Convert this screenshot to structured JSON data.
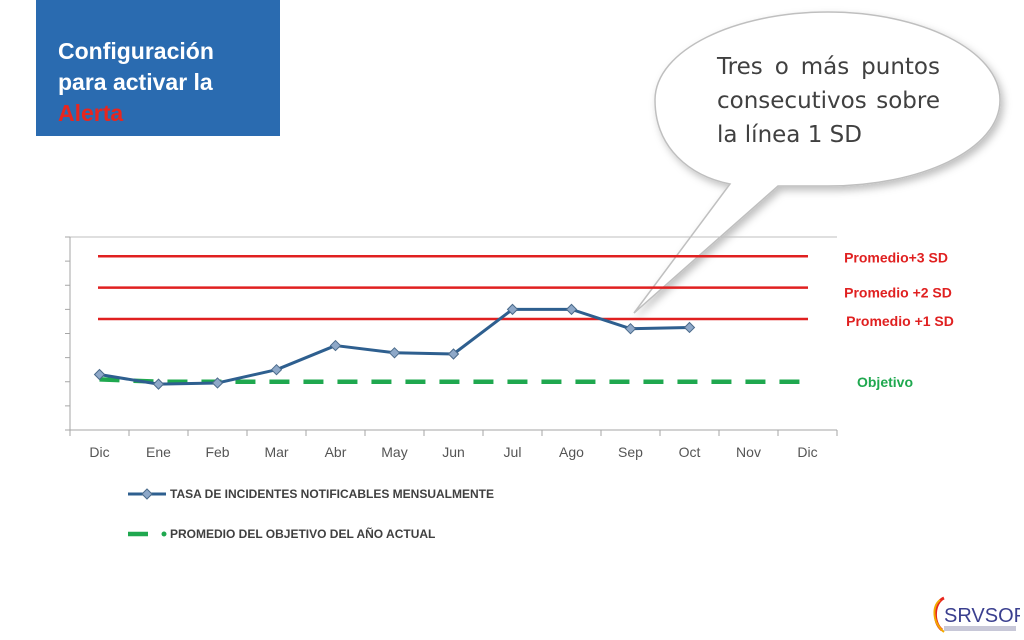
{
  "title_box": {
    "line1": "Configuración",
    "line2": "para activar la",
    "line3": "Alerta"
  },
  "callout": {
    "lines": [
      "Tres o más puntos",
      "consecutivos sobre",
      "la línea 1 SD"
    ]
  },
  "colors": {
    "title_bg": "#2a6bb0",
    "alert_red": "#e8261e",
    "series_line": "#2e5f8f",
    "marker_fill": "#8ea8c8",
    "sd_line": "#e02020",
    "objective": "#1fa84f"
  },
  "chart_data": {
    "type": "line",
    "categories": [
      "Dic",
      "Ene",
      "Feb",
      "Mar",
      "Abr",
      "May",
      "Jun",
      "Jul",
      "Ago",
      "Sep",
      "Oct",
      "Nov",
      "Dic"
    ],
    "ylim": [
      0,
      8
    ],
    "grid": false,
    "legend_position": "bottom",
    "series": [
      {
        "name": "TASA DE INCIDENTES NOTIFICABLES MENSUALMENTE",
        "style": "solid-diamond",
        "values": [
          2.3,
          1.9,
          1.95,
          2.5,
          3.5,
          3.2,
          3.15,
          5.0,
          5.0,
          4.2,
          4.25,
          null,
          null
        ]
      },
      {
        "name": "PROMEDIO DEL OBJETIVO DEL AÑO ACTUAL",
        "style": "dashed",
        "values": [
          2.1,
          2.0,
          2.0,
          2.0,
          2.0,
          2.0,
          2.0,
          2.0,
          2.0,
          2.0,
          2.0,
          2.0,
          2.0
        ]
      }
    ],
    "reference_lines": [
      {
        "label": "Promedio+3 SD",
        "value": 7.2,
        "color": "#e02020"
      },
      {
        "label": "Promedio +2 SD",
        "value": 5.9,
        "color": "#e02020"
      },
      {
        "label": "Promedio +1 SD",
        "value": 4.6,
        "color": "#e02020"
      },
      {
        "label": "Objetivo",
        "value": 2.0,
        "color": "#1fa84f"
      }
    ]
  },
  "logo": {
    "text": "SRVSOP"
  }
}
